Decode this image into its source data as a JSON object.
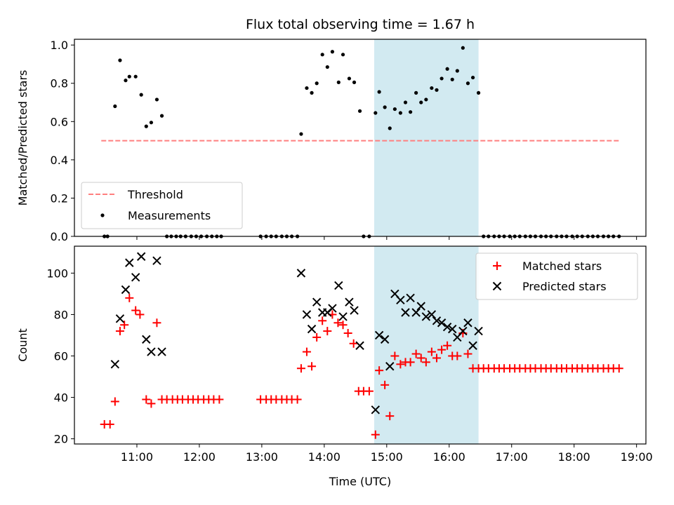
{
  "chart_data": {
    "title": "Flux total observing time = 1.67 h",
    "xlabel": "Time (UTC)",
    "x_tick_labels": [
      "11:00",
      "12:00",
      "13:00",
      "14:00",
      "15:00",
      "16:00",
      "17:00",
      "18:00",
      "19:00"
    ],
    "x_tick_hours": [
      11,
      12,
      13,
      14,
      15,
      16,
      17,
      18,
      19
    ],
    "xlim_hours": [
      10.0,
      19.15
    ],
    "shaded_region_hours": [
      14.8,
      16.47
    ],
    "shade_color": "#add8e6",
    "panels": [
      {
        "type": "scatter",
        "ylabel": "Matched/Predicted stars",
        "ylim": [
          0,
          1.03
        ],
        "y_ticks": [
          0.0,
          0.2,
          0.4,
          0.6,
          0.8,
          1.0
        ],
        "y_tick_labels": [
          "0.0",
          "0.2",
          "0.4",
          "0.6",
          "0.8",
          "1.0"
        ],
        "legend": {
          "position": "lower-left",
          "entries": [
            "Threshold",
            "Measurements"
          ]
        },
        "threshold": {
          "name": "Threshold",
          "value": 0.5,
          "x_range_hours": [
            10.43,
            18.73
          ],
          "color": "#ff7f7f"
        },
        "series": [
          {
            "name": "Measurements",
            "color": "#000000",
            "points": [
              [
                10.48,
                0.0
              ],
              [
                10.53,
                0.0
              ],
              [
                10.65,
                0.68
              ],
              [
                10.73,
                0.92
              ],
              [
                10.82,
                0.815
              ],
              [
                10.88,
                0.835
              ],
              [
                10.98,
                0.835
              ],
              [
                11.07,
                0.74
              ],
              [
                11.15,
                0.575
              ],
              [
                11.23,
                0.595
              ],
              [
                11.32,
                0.715
              ],
              [
                11.4,
                0.63
              ],
              [
                11.48,
                0.0
              ],
              [
                11.55,
                0.0
              ],
              [
                11.63,
                0.0
              ],
              [
                11.7,
                0.0
              ],
              [
                11.78,
                0.0
              ],
              [
                11.87,
                0.0
              ],
              [
                11.95,
                0.0
              ],
              [
                12.03,
                0.0
              ],
              [
                12.12,
                0.0
              ],
              [
                12.2,
                0.0
              ],
              [
                12.28,
                0.0
              ],
              [
                12.35,
                0.0
              ],
              [
                12.98,
                0.0
              ],
              [
                13.07,
                0.0
              ],
              [
                13.15,
                0.0
              ],
              [
                13.23,
                0.0
              ],
              [
                13.32,
                0.0
              ],
              [
                13.4,
                0.0
              ],
              [
                13.48,
                0.0
              ],
              [
                13.57,
                0.0
              ],
              [
                13.63,
                0.535
              ],
              [
                13.72,
                0.775
              ],
              [
                13.8,
                0.75
              ],
              [
                13.88,
                0.8
              ],
              [
                13.97,
                0.95
              ],
              [
                14.05,
                0.885
              ],
              [
                14.13,
                0.965
              ],
              [
                14.23,
                0.805
              ],
              [
                14.3,
                0.95
              ],
              [
                14.4,
                0.825
              ],
              [
                14.48,
                0.805
              ],
              [
                14.57,
                0.655
              ],
              [
                14.63,
                0.0
              ],
              [
                14.72,
                0.0
              ],
              [
                14.82,
                0.645
              ],
              [
                14.88,
                0.755
              ],
              [
                14.97,
                0.675
              ],
              [
                15.05,
                0.565
              ],
              [
                15.13,
                0.665
              ],
              [
                15.22,
                0.645
              ],
              [
                15.3,
                0.7
              ],
              [
                15.38,
                0.65
              ],
              [
                15.47,
                0.75
              ],
              [
                15.55,
                0.7
              ],
              [
                15.63,
                0.715
              ],
              [
                15.72,
                0.775
              ],
              [
                15.8,
                0.765
              ],
              [
                15.88,
                0.825
              ],
              [
                15.97,
                0.875
              ],
              [
                16.05,
                0.82
              ],
              [
                16.13,
                0.865
              ],
              [
                16.22,
                0.985
              ],
              [
                16.3,
                0.8
              ],
              [
                16.38,
                0.83
              ],
              [
                16.47,
                0.75
              ],
              [
                16.55,
                0.0
              ],
              [
                16.63,
                0.0
              ],
              [
                16.72,
                0.0
              ],
              [
                16.8,
                0.0
              ],
              [
                16.88,
                0.0
              ],
              [
                16.97,
                0.0
              ],
              [
                17.05,
                0.0
              ],
              [
                17.13,
                0.0
              ],
              [
                17.22,
                0.0
              ],
              [
                17.3,
                0.0
              ],
              [
                17.38,
                0.0
              ],
              [
                17.47,
                0.0
              ],
              [
                17.55,
                0.0
              ],
              [
                17.63,
                0.0
              ],
              [
                17.72,
                0.0
              ],
              [
                17.8,
                0.0
              ],
              [
                17.88,
                0.0
              ],
              [
                17.97,
                0.0
              ],
              [
                18.05,
                0.0
              ],
              [
                18.13,
                0.0
              ],
              [
                18.22,
                0.0
              ],
              [
                18.3,
                0.0
              ],
              [
                18.38,
                0.0
              ],
              [
                18.47,
                0.0
              ],
              [
                18.55,
                0.0
              ],
              [
                18.63,
                0.0
              ],
              [
                18.72,
                0.0
              ]
            ]
          }
        ]
      },
      {
        "type": "scatter",
        "ylabel": "Count",
        "ylim": [
          17.5,
          113
        ],
        "y_ticks": [
          20,
          40,
          60,
          80,
          100
        ],
        "y_tick_labels": [
          "20",
          "40",
          "60",
          "80",
          "100"
        ],
        "legend": {
          "position": "top-right",
          "entries": [
            "Matched stars",
            "Predicted stars"
          ]
        },
        "series": [
          {
            "name": "Matched stars",
            "marker": "plus",
            "color": "#ff0000",
            "points": [
              [
                10.48,
                27
              ],
              [
                10.57,
                27
              ],
              [
                10.65,
                38
              ],
              [
                10.73,
                72
              ],
              [
                10.8,
                75
              ],
              [
                10.88,
                88
              ],
              [
                10.98,
                82
              ],
              [
                11.05,
                80
              ],
              [
                11.15,
                39
              ],
              [
                11.23,
                37
              ],
              [
                11.32,
                76
              ],
              [
                11.4,
                39
              ],
              [
                11.48,
                39
              ],
              [
                11.57,
                39
              ],
              [
                11.65,
                39
              ],
              [
                11.73,
                39
              ],
              [
                11.82,
                39
              ],
              [
                11.9,
                39
              ],
              [
                11.98,
                39
              ],
              [
                12.07,
                39
              ],
              [
                12.15,
                39
              ],
              [
                12.23,
                39
              ],
              [
                12.32,
                39
              ],
              [
                12.98,
                39
              ],
              [
                13.07,
                39
              ],
              [
                13.15,
                39
              ],
              [
                13.23,
                39
              ],
              [
                13.32,
                39
              ],
              [
                13.4,
                39
              ],
              [
                13.48,
                39
              ],
              [
                13.57,
                39
              ],
              [
                13.63,
                54
              ],
              [
                13.72,
                62
              ],
              [
                13.8,
                55
              ],
              [
                13.88,
                69
              ],
              [
                13.97,
                77
              ],
              [
                14.05,
                72
              ],
              [
                14.13,
                80
              ],
              [
                14.22,
                76
              ],
              [
                14.3,
                75
              ],
              [
                14.38,
                71
              ],
              [
                14.47,
                66
              ],
              [
                14.55,
                43
              ],
              [
                14.63,
                43
              ],
              [
                14.72,
                43
              ],
              [
                14.82,
                22
              ],
              [
                14.88,
                53
              ],
              [
                14.97,
                46
              ],
              [
                15.05,
                31
              ],
              [
                15.13,
                60
              ],
              [
                15.22,
                56
              ],
              [
                15.3,
                57
              ],
              [
                15.38,
                57
              ],
              [
                15.47,
                61
              ],
              [
                15.55,
                59
              ],
              [
                15.63,
                57
              ],
              [
                15.72,
                62
              ],
              [
                15.8,
                59
              ],
              [
                15.88,
                63
              ],
              [
                15.97,
                65
              ],
              [
                16.05,
                60
              ],
              [
                16.13,
                60
              ],
              [
                16.22,
                71
              ],
              [
                16.3,
                61
              ],
              [
                16.38,
                54
              ],
              [
                16.47,
                54
              ],
              [
                16.55,
                54
              ],
              [
                16.63,
                54
              ],
              [
                16.72,
                54
              ],
              [
                16.8,
                54
              ],
              [
                16.88,
                54
              ],
              [
                16.97,
                54
              ],
              [
                17.05,
                54
              ],
              [
                17.13,
                54
              ],
              [
                17.22,
                54
              ],
              [
                17.3,
                54
              ],
              [
                17.38,
                54
              ],
              [
                17.47,
                54
              ],
              [
                17.55,
                54
              ],
              [
                17.63,
                54
              ],
              [
                17.72,
                54
              ],
              [
                17.8,
                54
              ],
              [
                17.88,
                54
              ],
              [
                17.97,
                54
              ],
              [
                18.05,
                54
              ],
              [
                18.13,
                54
              ],
              [
                18.22,
                54
              ],
              [
                18.3,
                54
              ],
              [
                18.38,
                54
              ],
              [
                18.47,
                54
              ],
              [
                18.55,
                54
              ],
              [
                18.63,
                54
              ],
              [
                18.72,
                54
              ]
            ]
          },
          {
            "name": "Predicted stars",
            "marker": "x",
            "color": "#000000",
            "points": [
              [
                10.65,
                56
              ],
              [
                10.73,
                78
              ],
              [
                10.82,
                92
              ],
              [
                10.88,
                105
              ],
              [
                10.98,
                98
              ],
              [
                11.07,
                108
              ],
              [
                11.15,
                68
              ],
              [
                11.23,
                62
              ],
              [
                11.32,
                106
              ],
              [
                11.4,
                62
              ],
              [
                13.63,
                100
              ],
              [
                13.72,
                80
              ],
              [
                13.8,
                73
              ],
              [
                13.88,
                86
              ],
              [
                13.97,
                81
              ],
              [
                14.05,
                81
              ],
              [
                14.13,
                83
              ],
              [
                14.23,
                94
              ],
              [
                14.3,
                79
              ],
              [
                14.4,
                86
              ],
              [
                14.48,
                82
              ],
              [
                14.57,
                65
              ],
              [
                14.82,
                34
              ],
              [
                14.88,
                70
              ],
              [
                14.97,
                68
              ],
              [
                15.05,
                55
              ],
              [
                15.13,
                90
              ],
              [
                15.22,
                87
              ],
              [
                15.3,
                81
              ],
              [
                15.38,
                88
              ],
              [
                15.47,
                81
              ],
              [
                15.55,
                84
              ],
              [
                15.63,
                79
              ],
              [
                15.72,
                80
              ],
              [
                15.8,
                77
              ],
              [
                15.88,
                76
              ],
              [
                15.97,
                74
              ],
              [
                16.05,
                73
              ],
              [
                16.13,
                69
              ],
              [
                16.22,
                72
              ],
              [
                16.3,
                76
              ],
              [
                16.38,
                65
              ],
              [
                16.47,
                72
              ]
            ]
          }
        ]
      }
    ]
  }
}
